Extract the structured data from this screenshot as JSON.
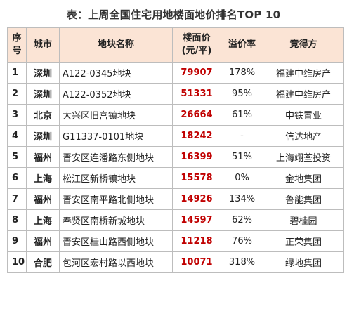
{
  "title": "表：上周全国住宅用地楼面地价排名TOP 10",
  "table": {
    "headers": {
      "rank": "序\n号",
      "city": "城市",
      "plot": "地块名称",
      "price": "楼面价\n(元/平)",
      "premium": "溢价率",
      "buyer": "竞得方"
    },
    "rows": [
      {
        "rank": "1",
        "city": "深圳",
        "plot": "A122-0345地块",
        "price": "79907",
        "premium": "178%",
        "buyer": "福建中维房产"
      },
      {
        "rank": "2",
        "city": "深圳",
        "plot": "A122-0352地块",
        "price": "51331",
        "premium": "95%",
        "buyer": "福建中维房产"
      },
      {
        "rank": "3",
        "city": "北京",
        "plot": "大兴区旧宫镇地块",
        "price": "26664",
        "premium": "61%",
        "buyer": "中铁置业"
      },
      {
        "rank": "4",
        "city": "深圳",
        "plot": "G11337-0101地块",
        "price": "18242",
        "premium": "-",
        "buyer": "信达地产"
      },
      {
        "rank": "5",
        "city": "福州",
        "plot": "晋安区连潘路东侧地块",
        "price": "16399",
        "premium": "51%",
        "buyer": "上海翊荃投资"
      },
      {
        "rank": "6",
        "city": "上海",
        "plot": "松江区新桥镇地块",
        "price": "15578",
        "premium": "0%",
        "buyer": "金地集团"
      },
      {
        "rank": "7",
        "city": "福州",
        "plot": "晋安区南平路北侧地块",
        "price": "14926",
        "premium": "134%",
        "buyer": "鲁能集团"
      },
      {
        "rank": "8",
        "city": "上海",
        "plot": "奉贤区南桥新城地块",
        "price": "14597",
        "premium": "62%",
        "buyer": "碧桂园"
      },
      {
        "rank": "9",
        "city": "福州",
        "plot": "晋安区桂山路西侧地块",
        "price": "11218",
        "premium": "76%",
        "buyer": "正荣集团"
      },
      {
        "rank": "10",
        "city": "合肥",
        "plot": "包河区宏村路以西地块",
        "price": "10071",
        "premium": "318%",
        "buyer": "绿地集团"
      }
    ]
  },
  "colors": {
    "header_bg": "#fbe4d5",
    "price_text": "#c00000",
    "border": "#bdbdbd"
  }
}
